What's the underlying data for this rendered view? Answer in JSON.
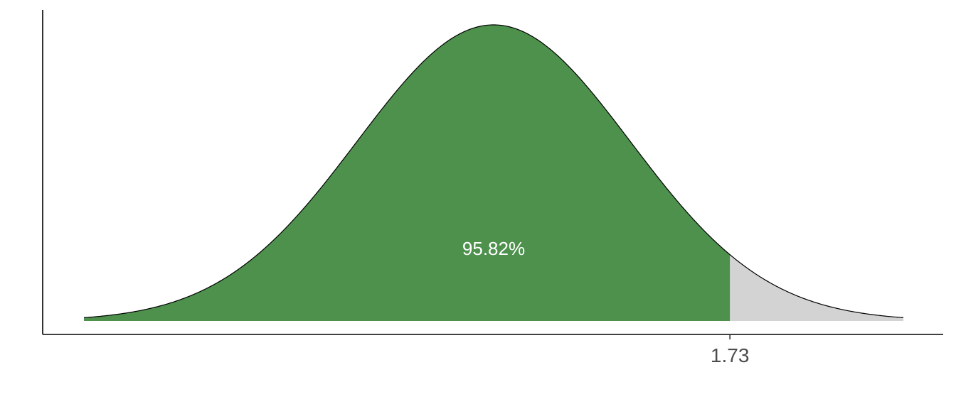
{
  "chart_data": {
    "type": "area",
    "distribution": "standard-normal",
    "x_range": [
      -3,
      3
    ],
    "cutoff": 1.73,
    "shaded_region": "left",
    "area_label": "95.82%",
    "x_ticks": [
      {
        "value": 1.73,
        "label": "1.73"
      }
    ],
    "title": "",
    "xlabel": "",
    "ylabel": "",
    "grid": false,
    "colors": {
      "shaded": "#4d914d",
      "unshaded": "#d3d3d3",
      "curve": "#000000",
      "axis": "#000000",
      "label": "#ffffff",
      "tick_text": "#4d4d4d"
    }
  }
}
